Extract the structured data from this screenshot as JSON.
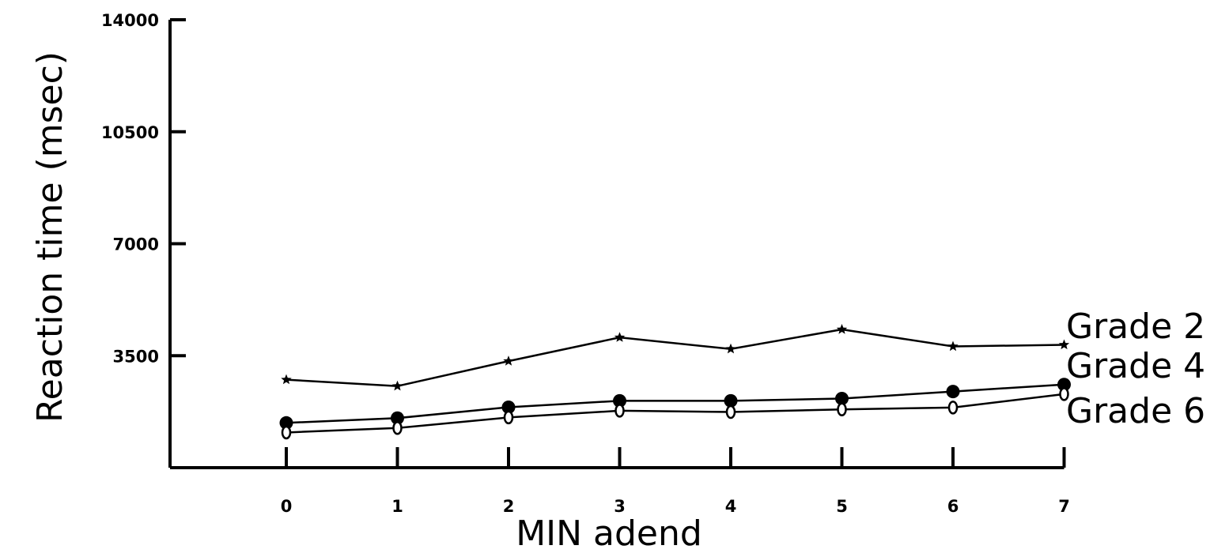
{
  "chart_data": {
    "type": "line",
    "xlabel": "MIN adend",
    "ylabel": "Reaction time (msec)",
    "ylim": [
      0,
      14000
    ],
    "yticks": [
      "3500",
      "7000",
      "10500",
      "14000"
    ],
    "x": [
      0,
      1,
      2,
      3,
      4,
      5,
      6,
      7
    ],
    "xticks": [
      "0",
      "1",
      "2",
      "3",
      "4",
      "5",
      "6",
      "7"
    ],
    "grid": false,
    "legend": "none",
    "series": [
      {
        "name": "Grade 2",
        "marker": "star",
        "color": "#000000",
        "values": [
          2750,
          2550,
          3330,
          4070,
          3710,
          4320,
          3790,
          3840
        ]
      },
      {
        "name": "Grade 4",
        "marker": "filled-circle",
        "color": "#000000",
        "values": [
          1400,
          1550,
          1890,
          2090,
          2090,
          2160,
          2380,
          2600
        ]
      },
      {
        "name": "Grade 6",
        "marker": "open-circle",
        "color": "#000000",
        "values": [
          1100,
          1240,
          1570,
          1780,
          1740,
          1820,
          1880,
          2300
        ]
      }
    ]
  }
}
